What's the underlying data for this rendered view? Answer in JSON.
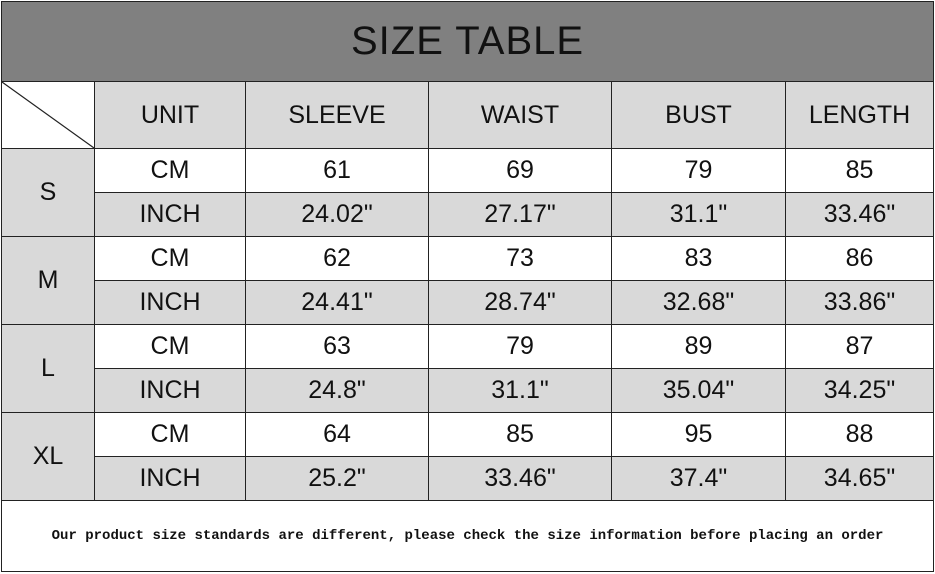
{
  "title": "SIZE TABLE",
  "headers": [
    "UNIT",
    "SLEEVE",
    "WAIST",
    "BUST",
    "LENGTH"
  ],
  "sizes": [
    {
      "size": "S",
      "cm": {
        "unit": "CM",
        "values": [
          "61",
          "69",
          "79",
          "85"
        ]
      },
      "inch": {
        "unit": "INCH",
        "values": [
          "24.02\"",
          "27.17\"",
          "31.1\"",
          "33.46\""
        ]
      }
    },
    {
      "size": "M",
      "cm": {
        "unit": "CM",
        "values": [
          "62",
          "73",
          "83",
          "86"
        ]
      },
      "inch": {
        "unit": "INCH",
        "values": [
          "24.41\"",
          "28.74\"",
          "32.68\"",
          "33.86\""
        ]
      }
    },
    {
      "size": "L",
      "cm": {
        "unit": "CM",
        "values": [
          "63",
          "79",
          "89",
          "87"
        ]
      },
      "inch": {
        "unit": "INCH",
        "values": [
          "24.8\"",
          "31.1\"",
          "35.04\"",
          "34.25\""
        ]
      }
    },
    {
      "size": "XL",
      "cm": {
        "unit": "CM",
        "values": [
          "64",
          "85",
          "95",
          "88"
        ]
      },
      "inch": {
        "unit": "INCH",
        "values": [
          "25.2\"",
          "33.46\"",
          "37.4\"",
          "34.65\""
        ]
      }
    }
  ],
  "footer": "Our product size standards are different, please check the size information before placing an order",
  "colors": {
    "title_bg": "#808080",
    "cell_gray": "#d9d9d9",
    "cell_white": "#ffffff"
  }
}
